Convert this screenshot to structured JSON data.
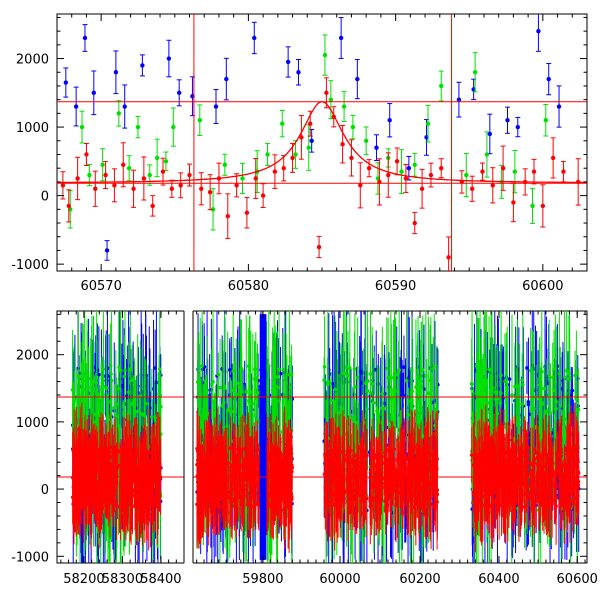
{
  "chart_data": [
    {
      "type": "scatter",
      "title": "",
      "xlabel": "",
      "ylabel": "",
      "xlim": [
        60567,
        60603
      ],
      "ylim": [
        -1100,
        2650
      ],
      "xticks": [
        60570,
        60580,
        60590,
        60600
      ],
      "yticks": [
        -1000,
        0,
        1000,
        2000
      ],
      "grid": false,
      "colors": {
        "blue": "#0000ff",
        "green": "#00e000",
        "red": "#ff0000"
      },
      "hlines": [
        1370,
        180
      ],
      "vlines": [
        60576.3,
        60593.8
      ],
      "model": {
        "baseline": 180,
        "peak_x": 60585.0,
        "peak_y": 1370,
        "width": 1.8
      },
      "series": [
        {
          "color": "blue",
          "points": [
            [
              60567.6,
              1650
            ],
            [
              60568.3,
              1300
            ],
            [
              60568.9,
              2300
            ],
            [
              60569.5,
              1500
            ],
            [
              60570.4,
              -800
            ],
            [
              60571.0,
              1800
            ],
            [
              60571.6,
              1300
            ],
            [
              60572.8,
              1900
            ],
            [
              60574.6,
              2000
            ],
            [
              60575.3,
              1500
            ],
            [
              60576.2,
              1450
            ],
            [
              60577.8,
              1300
            ],
            [
              60578.5,
              1700
            ],
            [
              60580.4,
              2300
            ],
            [
              60582.7,
              1950
            ],
            [
              60583.4,
              1800
            ],
            [
              60584.3,
              800
            ],
            [
              60586.3,
              2300
            ],
            [
              60587.4,
              1700
            ],
            [
              60588.7,
              700
            ],
            [
              60589.6,
              1100
            ],
            [
              60590.9,
              400
            ],
            [
              60592.1,
              850
            ],
            [
              60594.3,
              1400
            ],
            [
              60595.3,
              1550
            ],
            [
              60596.4,
              900
            ],
            [
              60597.6,
              1100
            ],
            [
              60598.3,
              1000
            ],
            [
              60599.7,
              2400
            ],
            [
              60600.4,
              1700
            ],
            [
              60601.1,
              1300
            ]
          ]
        },
        {
          "color": "green",
          "points": [
            [
              60567.9,
              -200
            ],
            [
              60568.7,
              1000
            ],
            [
              60569.2,
              300
            ],
            [
              60570.1,
              450
            ],
            [
              60571.2,
              1200
            ],
            [
              60571.9,
              400
            ],
            [
              60572.5,
              1000
            ],
            [
              60573.3,
              300
            ],
            [
              60573.8,
              550
            ],
            [
              60574.4,
              500
            ],
            [
              60574.9,
              1000
            ],
            [
              60576.7,
              1100
            ],
            [
              60577.6,
              -200
            ],
            [
              60578.4,
              450
            ],
            [
              60579.6,
              250
            ],
            [
              60580.6,
              350
            ],
            [
              60581.3,
              600
            ],
            [
              60582.3,
              1050
            ],
            [
              60583.2,
              600
            ],
            [
              60584.1,
              700
            ],
            [
              60585.2,
              2050
            ],
            [
              60585.6,
              1400
            ],
            [
              60586.5,
              1300
            ],
            [
              60587.1,
              1000
            ],
            [
              60588.0,
              800
            ],
            [
              60588.8,
              250
            ],
            [
              60589.5,
              550
            ],
            [
              60590.4,
              350
            ],
            [
              60591.3,
              450
            ],
            [
              60592.2,
              1050
            ],
            [
              60593.1,
              1600
            ],
            [
              60594.8,
              300
            ],
            [
              60595.4,
              1800
            ],
            [
              60596.2,
              600
            ],
            [
              60597.2,
              200
            ],
            [
              60598.1,
              350
            ],
            [
              60599.3,
              -150
            ],
            [
              60600.2,
              1100
            ]
          ]
        },
        {
          "color": "red",
          "points": [
            [
              60567.4,
              150
            ],
            [
              60567.8,
              -150
            ],
            [
              60568.4,
              250
            ],
            [
              60569.0,
              600
            ],
            [
              60569.6,
              100
            ],
            [
              60570.3,
              300
            ],
            [
              60570.9,
              150
            ],
            [
              60571.5,
              450
            ],
            [
              60572.2,
              100
            ],
            [
              60572.9,
              250
            ],
            [
              60573.5,
              -150
            ],
            [
              60574.2,
              350
            ],
            [
              60574.8,
              100
            ],
            [
              60575.4,
              150
            ],
            [
              60576.0,
              300
            ],
            [
              60576.8,
              100
            ],
            [
              60577.4,
              50
            ],
            [
              60578.0,
              250
            ],
            [
              60578.6,
              -300
            ],
            [
              60579.2,
              150
            ],
            [
              60579.9,
              -250
            ],
            [
              60580.5,
              250
            ],
            [
              60581.0,
              0
            ],
            [
              60581.8,
              350
            ],
            [
              60582.4,
              400
            ],
            [
              60583.0,
              550
            ],
            [
              60583.6,
              850
            ],
            [
              60584.2,
              1050
            ],
            [
              60584.8,
              -750
            ],
            [
              60585.3,
              1500
            ],
            [
              60585.8,
              1150
            ],
            [
              60586.4,
              750
            ],
            [
              60587.0,
              550
            ],
            [
              60587.6,
              150
            ],
            [
              60588.2,
              400
            ],
            [
              60588.9,
              200
            ],
            [
              60589.5,
              300
            ],
            [
              60590.1,
              500
            ],
            [
              60590.7,
              250
            ],
            [
              60591.3,
              -400
            ],
            [
              60591.8,
              100
            ],
            [
              60592.4,
              300
            ],
            [
              60593.1,
              400
            ],
            [
              60593.6,
              -900
            ],
            [
              60594.5,
              200
            ],
            [
              60595.2,
              100
            ],
            [
              60595.9,
              350
            ],
            [
              60596.6,
              150
            ],
            [
              60597.3,
              400
            ],
            [
              60598.0,
              -100
            ],
            [
              60598.8,
              200
            ],
            [
              60599.4,
              350
            ],
            [
              60600.0,
              -150
            ],
            [
              60600.7,
              550
            ],
            [
              60601.4,
              350
            ],
            [
              60602.4,
              200
            ]
          ]
        }
      ]
    },
    {
      "type": "scatter",
      "title": "",
      "xlabel": "",
      "ylabel": "",
      "ylim": [
        -1100,
        2650
      ],
      "yticks": [
        -1000,
        0,
        1000,
        2000
      ],
      "grid": false,
      "hlines": [
        1370,
        180
      ],
      "segments": [
        {
          "xlim": [
            58130,
            58460
          ],
          "xticks": [
            58200,
            58300,
            58400
          ],
          "data_range": [
            58170,
            58400
          ]
        },
        {
          "xlim": [
            59610,
            59890
          ],
          "xticks": [
            59800
          ],
          "data_range": [
            59620,
            59880
          ]
        },
        {
          "xlim": [
            59890,
            60280
          ],
          "xticks": [
            60000,
            60200
          ],
          "data_range": [
            59960,
            60245
          ]
        },
        {
          "xlim": [
            60280,
            60625
          ],
          "xticks": [
            60400,
            60600
          ],
          "data_range": [
            60330,
            60605
          ]
        }
      ],
      "series_colors": [
        "blue",
        "green",
        "red"
      ]
    }
  ]
}
